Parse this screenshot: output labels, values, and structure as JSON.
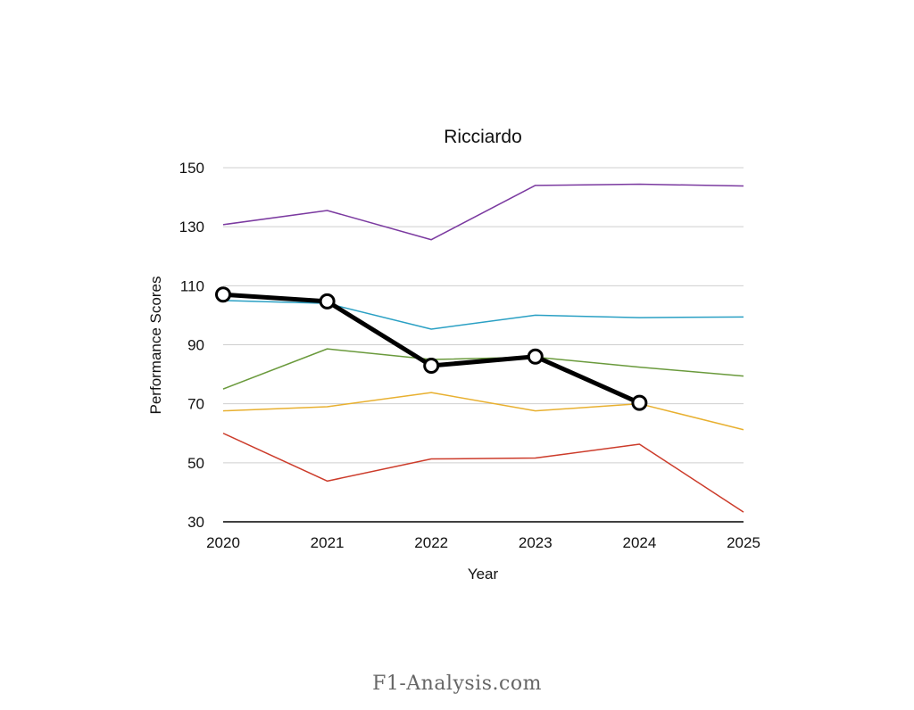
{
  "chart_data": {
    "type": "line",
    "title": "Ricciardo",
    "xlabel": "Year",
    "ylabel": "Performance Scores",
    "x": [
      "2020",
      "2021",
      "2022",
      "2023",
      "2024",
      "2025"
    ],
    "yticks": [
      30,
      50,
      70,
      90,
      110,
      130,
      150
    ],
    "ylim": [
      30,
      150
    ],
    "grid": true,
    "legend": "none",
    "series": [
      {
        "name": "purple",
        "color": "#7b3aa0",
        "width": 1.5,
        "markers": false,
        "values": [
          130.7,
          135.5,
          125.6,
          144.0,
          144.4,
          143.8
        ]
      },
      {
        "name": "cyan",
        "color": "#2aa0c4",
        "width": 1.5,
        "markers": false,
        "values": [
          105.0,
          104.0,
          95.3,
          100.0,
          99.2,
          99.4
        ]
      },
      {
        "name": "green",
        "color": "#6a9a3c",
        "width": 1.5,
        "markers": false,
        "values": [
          75.0,
          88.6,
          85.0,
          85.8,
          82.4,
          79.4
        ]
      },
      {
        "name": "yellow",
        "color": "#e8b030",
        "width": 1.5,
        "markers": false,
        "values": [
          67.6,
          69.0,
          73.8,
          67.6,
          70.0,
          61.2
        ]
      },
      {
        "name": "red",
        "color": "#cc3b2a",
        "width": 1.5,
        "markers": false,
        "values": [
          60.0,
          43.8,
          51.3,
          51.6,
          56.3,
          33.3
        ]
      },
      {
        "name": "Ricciardo",
        "color": "#000000",
        "width": 5,
        "markers": true,
        "values": [
          107.0,
          104.7,
          82.9,
          86.0,
          70.3,
          null
        ]
      }
    ]
  },
  "footer": {
    "text": "F1-Analysis.com"
  }
}
